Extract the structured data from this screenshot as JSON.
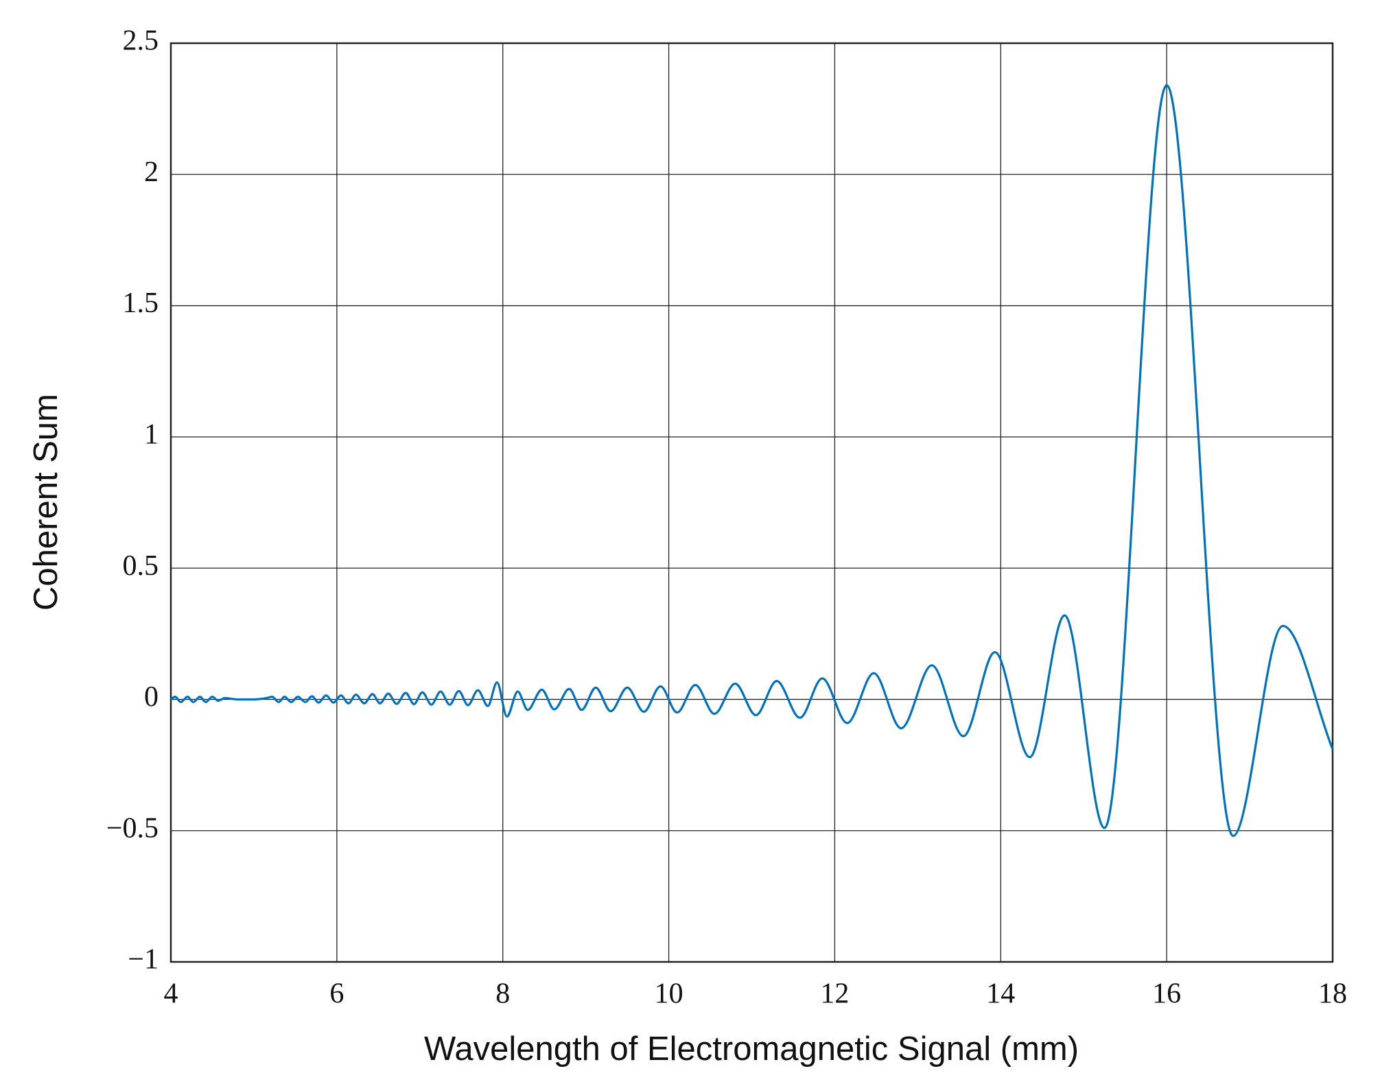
{
  "chart_data": {
    "type": "line",
    "xlabel": "Wavelength of Electromagnetic Signal (mm)",
    "ylabel": "Coherent Sum",
    "x": [
      4.0,
      4.05,
      4.12,
      4.2,
      4.27,
      4.35,
      4.42,
      4.5,
      4.57,
      4.65,
      4.8,
      5.0,
      5.15,
      5.22,
      5.3,
      5.37,
      5.45,
      5.53,
      5.62,
      5.7,
      5.78,
      5.87,
      5.96,
      6.05,
      6.14,
      6.23,
      6.33,
      6.43,
      6.52,
      6.62,
      6.72,
      6.83,
      6.93,
      7.03,
      7.14,
      7.25,
      7.36,
      7.47,
      7.58,
      7.7,
      7.82,
      7.93,
      8.05,
      8.18,
      8.3,
      8.47,
      8.62,
      8.8,
      8.95,
      9.12,
      9.3,
      9.5,
      9.7,
      9.9,
      10.1,
      10.32,
      10.55,
      10.8,
      11.05,
      11.3,
      11.58,
      11.85,
      12.15,
      12.47,
      12.8,
      13.17,
      13.55,
      13.93,
      14.35,
      14.77,
      15.25,
      16.0,
      16.8,
      17.4,
      18.0
    ],
    "series": [
      {
        "name": "Coherent Sum",
        "color": "#0072bd",
        "values": [
          0,
          0.01,
          -0.01,
          0.01,
          -0.01,
          0.01,
          -0.01,
          0.01,
          -0.005,
          0.005,
          0,
          0,
          0.005,
          0.01,
          -0.01,
          0.01,
          -0.01,
          0.01,
          -0.01,
          0.012,
          -0.012,
          0.015,
          -0.012,
          0.015,
          -0.015,
          0.018,
          -0.015,
          0.02,
          -0.015,
          0.022,
          -0.017,
          0.025,
          -0.018,
          0.027,
          -0.02,
          0.03,
          -0.02,
          0.032,
          -0.022,
          0.035,
          -0.025,
          0.065,
          -0.065,
          0.03,
          -0.04,
          0.037,
          -0.038,
          0.04,
          -0.04,
          0.045,
          -0.045,
          0.045,
          -0.047,
          0.05,
          -0.05,
          0.055,
          -0.055,
          0.06,
          -0.06,
          0.07,
          -0.07,
          0.08,
          -0.09,
          0.1,
          -0.11,
          0.13,
          -0.14,
          0.18,
          -0.22,
          0.32,
          -0.49,
          2.34,
          -0.52,
          0.28,
          -0.19
        ]
      }
    ],
    "xlim": [
      4,
      18
    ],
    "xticks": [
      4,
      6,
      8,
      10,
      12,
      14,
      16,
      18
    ],
    "ylim": [
      -1,
      2.5
    ],
    "yticks": [
      {
        "value": -1,
        "label": "−1"
      },
      {
        "value": -0.5,
        "label": "−0.5"
      },
      0,
      0.5,
      1,
      1.5,
      2,
      2.5
    ],
    "grid": true
  }
}
